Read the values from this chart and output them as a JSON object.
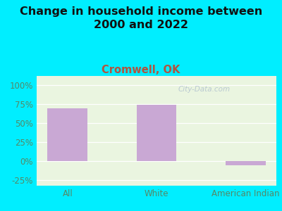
{
  "title": "Change in household income between\n2000 and 2022",
  "subtitle": "Cromwell, OK",
  "categories": [
    "All",
    "White",
    "American Indian"
  ],
  "values": [
    70,
    74,
    -5
  ],
  "bar_color": "#c9a8d4",
  "background_outer": "#00eeff",
  "background_plot": "#eaf5e0",
  "title_color": "#111111",
  "subtitle_color": "#b05540",
  "tick_label_color": "#558866",
  "yticks": [
    -25,
    0,
    25,
    50,
    75,
    100
  ],
  "ylim": [
    -32,
    112
  ],
  "watermark": "City-Data.com",
  "title_fontsize": 11.5,
  "subtitle_fontsize": 10.5
}
